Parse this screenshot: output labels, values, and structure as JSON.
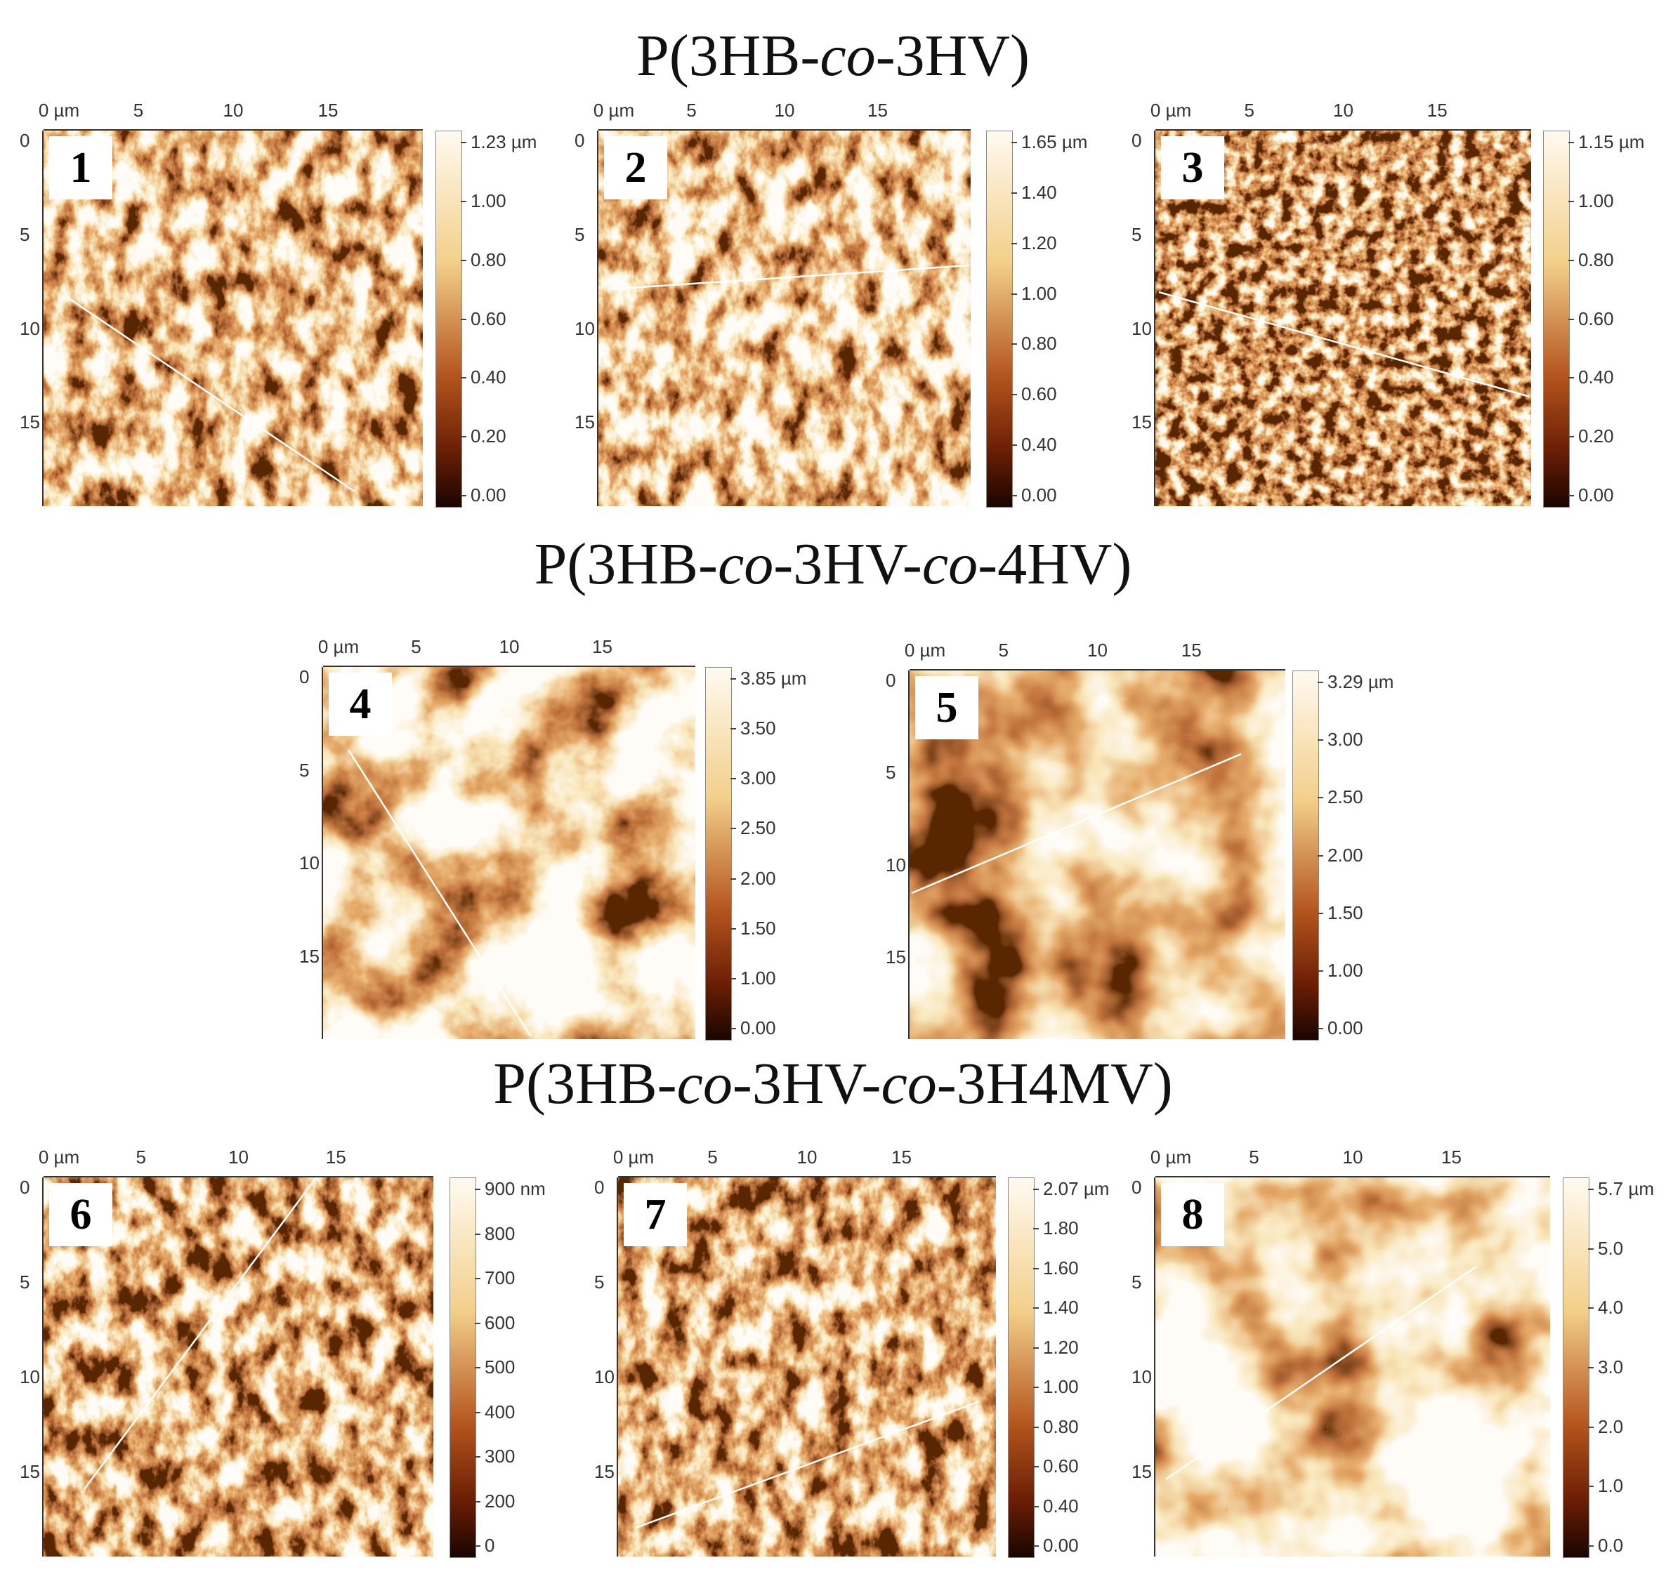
{
  "titles": [
    {
      "parts": [
        "P(3HB-",
        "co",
        "-3HV)"
      ]
    },
    {
      "parts": [
        "P(3HB-",
        "co",
        "-3HV-",
        "co",
        "-4HV)"
      ]
    },
    {
      "parts": [
        "P(3HB-",
        "co",
        "-3HV-",
        "co",
        "-3H4MV)"
      ]
    }
  ],
  "x_ticks": [
    "0 µm",
    "5",
    "10",
    "15"
  ],
  "y_ticks": [
    "0",
    "5",
    "10",
    "15"
  ],
  "panels": [
    {
      "number": "1",
      "group": 0,
      "colorbar": [
        "1.23 µm",
        "1.00",
        "0.80",
        "0.60",
        "0.40",
        "0.20",
        "0.00"
      ],
      "brightness": 0.55,
      "texture": "fibrous"
    },
    {
      "number": "2",
      "group": 0,
      "colorbar": [
        "1.65 µm",
        "1.40",
        "1.20",
        "1.00",
        "0.80",
        "0.60",
        "0.40",
        "0.00"
      ],
      "brightness": 0.6,
      "texture": "fibrous"
    },
    {
      "number": "3",
      "group": 0,
      "colorbar": [
        "1.15 µm",
        "1.00",
        "0.80",
        "0.60",
        "0.40",
        "0.20",
        "0.00"
      ],
      "brightness": 0.4,
      "texture": "fine"
    },
    {
      "number": "4",
      "group": 1,
      "colorbar": [
        "3.85 µm",
        "3.50",
        "3.00",
        "2.50",
        "2.00",
        "1.50",
        "1.00",
        "0.00"
      ],
      "brightness": 0.7,
      "texture": "smooth"
    },
    {
      "number": "5",
      "group": 1,
      "colorbar": [
        "3.29 µm",
        "3.00",
        "2.50",
        "2.00",
        "1.50",
        "1.00",
        "0.00"
      ],
      "brightness": 0.55,
      "texture": "blobby"
    },
    {
      "number": "6",
      "group": 2,
      "colorbar": [
        "900 nm",
        "800",
        "700",
        "600",
        "500",
        "400",
        "300",
        "200",
        "0"
      ],
      "brightness": 0.5,
      "texture": "fibrous"
    },
    {
      "number": "7",
      "group": 2,
      "colorbar": [
        "2.07 µm",
        "1.80",
        "1.60",
        "1.40",
        "1.20",
        "1.00",
        "0.80",
        "0.60",
        "0.40",
        "0.00"
      ],
      "brightness": 0.5,
      "texture": "fibrous"
    },
    {
      "number": "8",
      "group": 2,
      "colorbar": [
        "5.7 µm",
        "5.0",
        "4.0",
        "3.0",
        "2.0",
        "1.0",
        "0.0"
      ],
      "brightness": 0.75,
      "texture": "blobby"
    }
  ],
  "colors": {
    "dark": "#1a0500",
    "mid": "#b4551e",
    "light": "#f3cf8a",
    "white": "#fffaf0"
  }
}
